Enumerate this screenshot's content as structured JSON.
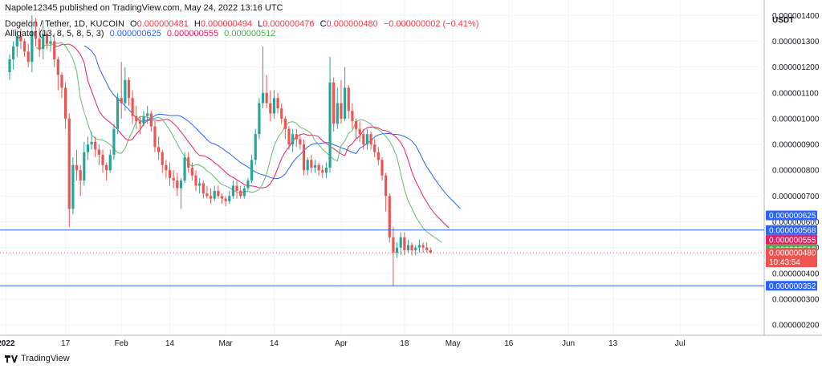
{
  "header": {
    "published": "Napole12345 published on TradingView.com, May 24, 2022 13:16 UTC",
    "symbol": "Dogelon / Tether, 1D, KUCOIN",
    "o_label": "O",
    "o_value": "0.000000481",
    "h_label": "H",
    "h_value": "0.000000494",
    "l_label": "L",
    "l_value": "0.000000476",
    "c_label": "C",
    "c_value": "0.000000480",
    "change": "−0.000000002 (−0.41%)",
    "indicator": "Alligator (13, 8, 5, 8, 5, 3)",
    "ind_jaw": "0.000000625",
    "ind_teeth": "0.000000555",
    "ind_lips": "0.000000512"
  },
  "footer": {
    "brand": "TradingView",
    "logo_icon": "tradingview-logo-icon"
  },
  "colors": {
    "up": "#26a69a",
    "down": "#ef5350",
    "jaw": "#2962ff",
    "teeth": "#e91e63",
    "lips": "#66bb6a",
    "hline": "#2962ff"
  },
  "chart_data": {
    "type": "candlestick",
    "currency": "USDT",
    "y_ticks": [
      "0.000001400",
      "0.000001300",
      "0.000001200",
      "0.000001100",
      "0.000001000",
      "0.000000900",
      "0.000000800",
      "0.000000700",
      "0.000000600",
      "0.000000500",
      "0.000000400",
      "0.000000300",
      "0.000000200"
    ],
    "x_ticks": [
      "2022",
      "17",
      "Feb",
      "14",
      "Mar",
      "14",
      "Apr",
      "18",
      "May",
      "16",
      "Jun",
      "13",
      "Jul"
    ],
    "ylim": [
      1.6e-07,
      1.46e-06
    ],
    "start_date": "2022-01-02",
    "candles": [
      [
        1180,
        1250,
        1150,
        1230
      ],
      [
        1230,
        1300,
        1190,
        1280
      ],
      [
        1280,
        1340,
        1240,
        1320
      ],
      [
        1320,
        1350,
        1270,
        1300
      ],
      [
        1300,
        1310,
        1240,
        1260
      ],
      [
        1260,
        1290,
        1200,
        1220
      ],
      [
        1220,
        1400,
        1180,
        1340
      ],
      [
        1340,
        1390,
        1280,
        1310
      ],
      [
        1310,
        1350,
        1240,
        1270
      ],
      [
        1270,
        1380,
        1230,
        1330
      ],
      [
        1330,
        1340,
        1270,
        1290
      ],
      [
        1290,
        1320,
        1260,
        1300
      ],
      [
        1300,
        1330,
        1200,
        1230
      ],
      [
        1230,
        1240,
        1110,
        1170
      ],
      [
        1170,
        1180,
        1080,
        1120
      ],
      [
        1120,
        1140,
        960,
        1000
      ],
      [
        1000,
        1020,
        580,
        650
      ],
      [
        650,
        850,
        630,
        820
      ],
      [
        820,
        880,
        760,
        800
      ],
      [
        800,
        820,
        700,
        760
      ],
      [
        760,
        910,
        740,
        870
      ],
      [
        870,
        930,
        840,
        900
      ],
      [
        900,
        950,
        880,
        910
      ],
      [
        910,
        930,
        850,
        880
      ],
      [
        880,
        900,
        820,
        860
      ],
      [
        860,
        880,
        790,
        820
      ],
      [
        820,
        830,
        760,
        800
      ],
      [
        800,
        880,
        790,
        860
      ],
      [
        860,
        980,
        840,
        960
      ],
      [
        960,
        1100,
        940,
        1080
      ],
      [
        1080,
        1220,
        1000,
        1060
      ],
      [
        1060,
        1200,
        1030,
        1150
      ],
      [
        1150,
        1160,
        1050,
        1080
      ],
      [
        1080,
        1110,
        980,
        1010
      ],
      [
        1010,
        1050,
        960,
        990
      ],
      [
        990,
        1010,
        940,
        980
      ],
      [
        980,
        1030,
        970,
        1010
      ],
      [
        1010,
        1050,
        980,
        1020
      ],
      [
        1020,
        1030,
        950,
        970
      ],
      [
        970,
        990,
        870,
        890
      ],
      [
        890,
        930,
        840,
        870
      ],
      [
        870,
        880,
        790,
        820
      ],
      [
        820,
        840,
        770,
        800
      ],
      [
        800,
        830,
        740,
        770
      ],
      [
        770,
        800,
        730,
        760
      ],
      [
        760,
        790,
        700,
        730
      ],
      [
        730,
        770,
        650,
        760
      ],
      [
        760,
        870,
        750,
        850
      ],
      [
        850,
        870,
        790,
        810
      ],
      [
        810,
        830,
        760,
        780
      ],
      [
        780,
        800,
        720,
        740
      ],
      [
        740,
        770,
        710,
        750
      ],
      [
        750,
        760,
        690,
        710
      ],
      [
        710,
        740,
        690,
        700
      ],
      [
        700,
        730,
        670,
        690
      ],
      [
        690,
        740,
        680,
        720
      ],
      [
        720,
        740,
        690,
        700
      ],
      [
        700,
        710,
        670,
        690
      ],
      [
        690,
        700,
        660,
        680
      ],
      [
        680,
        720,
        670,
        700
      ],
      [
        700,
        760,
        690,
        740
      ],
      [
        740,
        760,
        690,
        720
      ],
      [
        720,
        740,
        690,
        700
      ],
      [
        700,
        740,
        690,
        730
      ],
      [
        730,
        770,
        720,
        760
      ],
      [
        760,
        860,
        750,
        840
      ],
      [
        840,
        960,
        820,
        940
      ],
      [
        940,
        1080,
        920,
        1060
      ],
      [
        1060,
        1280,
        1040,
        1100
      ],
      [
        1100,
        1170,
        1040,
        1060
      ],
      [
        1060,
        1110,
        990,
        1020
      ],
      [
        1020,
        1110,
        1000,
        1080
      ],
      [
        1080,
        1100,
        1020,
        1040
      ],
      [
        1040,
        1060,
        980,
        1000
      ],
      [
        1000,
        1010,
        920,
        960
      ],
      [
        960,
        970,
        880,
        900
      ],
      [
        900,
        960,
        870,
        940
      ],
      [
        940,
        960,
        890,
        920
      ],
      [
        920,
        940,
        880,
        900
      ],
      [
        900,
        920,
        780,
        800
      ],
      [
        800,
        850,
        780,
        840
      ],
      [
        840,
        860,
        790,
        810
      ],
      [
        810,
        840,
        790,
        820
      ],
      [
        820,
        830,
        780,
        800
      ],
      [
        800,
        820,
        770,
        790
      ],
      [
        790,
        830,
        770,
        810
      ],
      [
        810,
        1240,
        790,
        1140
      ],
      [
        1140,
        1160,
        950,
        980
      ],
      [
        980,
        1120,
        960,
        1060
      ],
      [
        1060,
        1150,
        980,
        1000
      ],
      [
        1000,
        1200,
        990,
        1120
      ],
      [
        1120,
        1130,
        1000,
        1030
      ],
      [
        1030,
        1060,
        960,
        990
      ],
      [
        990,
        1000,
        920,
        960
      ],
      [
        960,
        990,
        910,
        940
      ],
      [
        940,
        960,
        880,
        900
      ],
      [
        900,
        960,
        880,
        940
      ],
      [
        940,
        950,
        880,
        900
      ],
      [
        900,
        920,
        850,
        870
      ],
      [
        870,
        890,
        820,
        840
      ],
      [
        840,
        850,
        760,
        780
      ],
      [
        780,
        790,
        640,
        700
      ],
      [
        700,
        710,
        520,
        540
      ],
      [
        540,
        580,
        350,
        480
      ],
      [
        480,
        520,
        460,
        500
      ],
      [
        500,
        560,
        470,
        540
      ],
      [
        540,
        560,
        470,
        490
      ],
      [
        490,
        530,
        480,
        510
      ],
      [
        510,
        520,
        470,
        490
      ],
      [
        490,
        510,
        470,
        500
      ],
      [
        500,
        530,
        480,
        510
      ],
      [
        510,
        520,
        480,
        500
      ],
      [
        500,
        520,
        480,
        490
      ],
      [
        490,
        500,
        476,
        480
      ]
    ],
    "alligator": {
      "jaw_value": 6.25e-07,
      "teeth_value": 5.55e-07,
      "lips_value": 5.12e-07
    },
    "hlines": [
      {
        "value": 5.68e-07,
        "label": "0.000000568"
      },
      {
        "value": 3.52e-07,
        "label": "0.000000352"
      }
    ],
    "last_price": {
      "value": 4.8e-07,
      "label": "0.000000480",
      "countdown": "10:43:54"
    },
    "price_tags": [
      {
        "label": "0.000000625",
        "value": 6.25e-07,
        "color": "#2962ff"
      },
      {
        "label": "0.000000568",
        "value": 5.68e-07,
        "color": "#2962ff"
      },
      {
        "label": "0.000000555",
        "value": 5.55e-07,
        "color": "#e91e63"
      },
      {
        "label": "0.000000512",
        "value": 5.12e-07,
        "color": "#4caf50"
      }
    ]
  }
}
